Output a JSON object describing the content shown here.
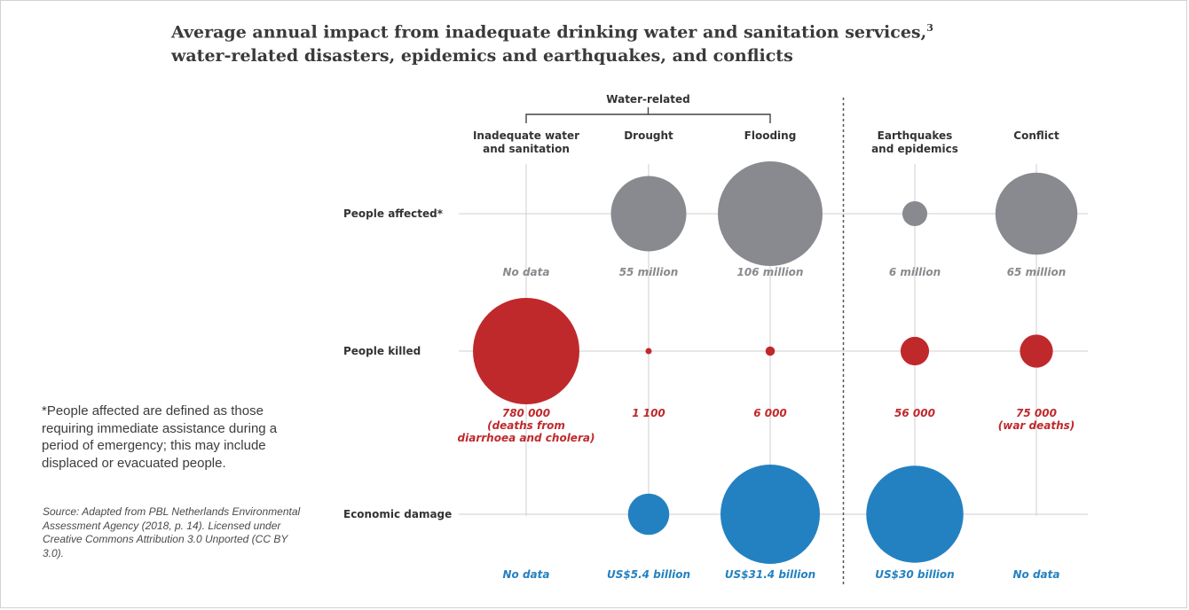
{
  "title": {
    "line1": "Average annual impact from inadequate drinking water and sanitation services,",
    "footnote_ref": "3",
    "line2": "water-related disasters, epidemics and earthquakes, and conflicts"
  },
  "note": "*People affected are defined as those requiring immediate assistance during a period of emergency; this may include displaced or evacuated people.",
  "source": "Source: Adapted from PBL Netherlands Environmental Assessment Agency (2018, p. 14). Licensed under Creative Commons Attribution 3.0 Unported (CC BY 3.0).",
  "colors": {
    "affected": "#898a8f",
    "killed": "#c0292c",
    "damage": "#2481c1",
    "text": "#333333",
    "grid": "#cfcfcf"
  },
  "chart_data": {
    "type": "bubble",
    "group_label": "Water-related",
    "group_columns": [
      0,
      1,
      2
    ],
    "divider_after_column": 2,
    "columns": [
      [
        "Inadequate water",
        "and sanitation"
      ],
      [
        "Drought"
      ],
      [
        "Flooding"
      ],
      [
        "Earthquakes",
        "and epidemics"
      ],
      [
        "Conflict"
      ]
    ],
    "rows": [
      {
        "name": "People affected*",
        "unit": "people",
        "values": [
          null,
          55000000,
          106000000,
          6000000,
          65000000
        ],
        "value_labels": [
          [
            "No data"
          ],
          [
            "55 million"
          ],
          [
            "106 million"
          ],
          [
            "6 million"
          ],
          [
            "65 million"
          ]
        ]
      },
      {
        "name": "People killed",
        "unit": "deaths",
        "values": [
          780000,
          1100,
          6000,
          56000,
          75000
        ],
        "value_labels": [
          [
            "780 000",
            "(deaths from",
            "diarrhoea and cholera)"
          ],
          [
            "1 100"
          ],
          [
            "6 000"
          ],
          [
            "56 000"
          ],
          [
            "75 000",
            "(war deaths)"
          ]
        ]
      },
      {
        "name": "Economic damage",
        "unit": "US$",
        "values": [
          null,
          5400000000,
          31400000000,
          30000000000,
          null
        ],
        "value_labels": [
          [
            "No data"
          ],
          [
            "US$5.4 billion"
          ],
          [
            "US$31.4 billion"
          ],
          [
            "US$30 billion"
          ],
          [
            "No data"
          ]
        ]
      }
    ]
  }
}
